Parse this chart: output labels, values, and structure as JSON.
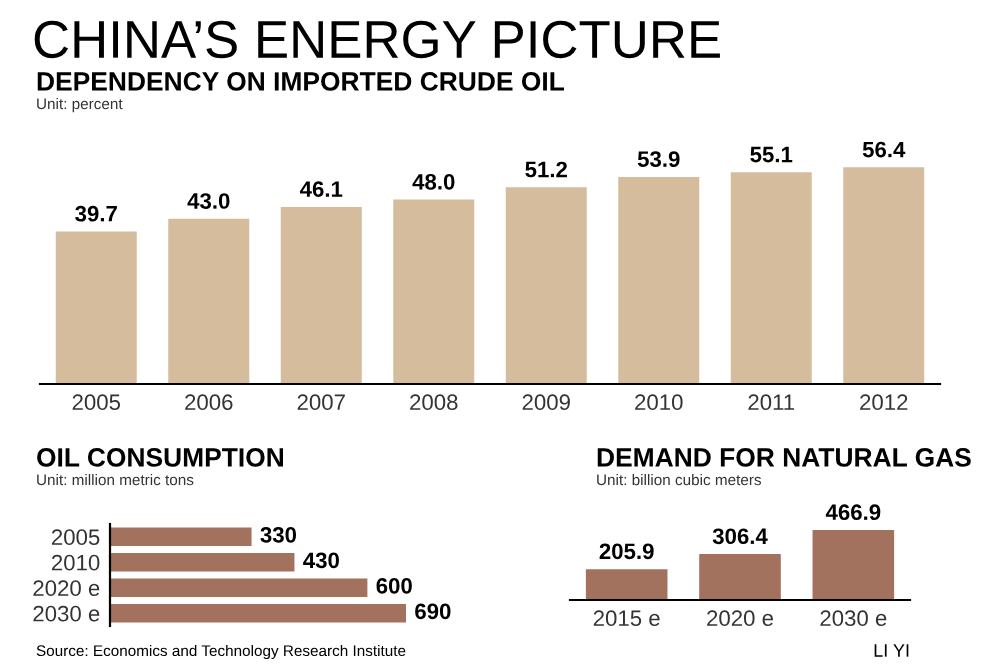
{
  "chart_data": [
    {
      "type": "bar",
      "title": "DEPENDENCY ON IMPORTED CRUDE OIL",
      "subtitle": "Unit: percent",
      "annotations": [
        "CHINA’S ENERGY PICTURE"
      ],
      "categories": [
        "2005",
        "2006",
        "2007",
        "2008",
        "2009",
        "2010",
        "2011",
        "2012"
      ],
      "values": [
        39.7,
        43.0,
        46.1,
        48.0,
        51.2,
        53.9,
        55.1,
        56.4
      ],
      "value_labels": [
        "39.7",
        "43.0",
        "46.1",
        "48.0",
        "51.2",
        "53.9",
        "55.1",
        "56.4"
      ],
      "color": "#d4bc9c"
    },
    {
      "type": "bar",
      "orientation": "horizontal",
      "title": "OIL CONSUMPTION",
      "subtitle": "Unit: million metric tons",
      "annotations": [
        "Source: Economics and Technology Research Institute"
      ],
      "categories": [
        "2005",
        "2010",
        "2020 e",
        "2030 e"
      ],
      "values": [
        330,
        430,
        600,
        690
      ],
      "data_labels": true,
      "color": "#a2725e"
    },
    {
      "type": "bar",
      "title": "DEMAND FOR NATURAL GAS",
      "subtitle": "Unit: billion cubic meters",
      "annotations": [
        "LI YI"
      ],
      "categories": [
        "2015 e",
        "2020 e",
        "2030 e"
      ],
      "values": [
        205.9,
        306.4,
        466.9
      ],
      "data_labels": true,
      "color": "#a2725e"
    }
  ]
}
